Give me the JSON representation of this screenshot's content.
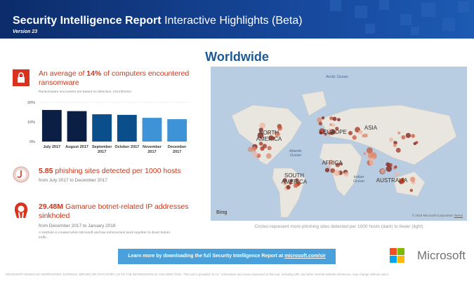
{
  "header": {
    "title_bold": "Security Intelligence Report",
    "title_rest": "Interactive Highlights (Beta)",
    "version": "Version 23"
  },
  "heading": "Worldwide",
  "ransomware": {
    "prefix": "An average of ",
    "value": "14%",
    "suffix": " of computers encountered ransomware",
    "note": "Ransomware encounters are based on detection, not infection."
  },
  "chart_data": {
    "type": "bar",
    "categories": [
      "July 2017",
      "August 2017",
      "September 2017",
      "October 2017",
      "November 2017",
      "December 2017"
    ],
    "values": [
      16.1,
      15.5,
      13.9,
      13.6,
      12.1,
      11.4
    ],
    "colors": [
      "#0b1f44",
      "#0b1f44",
      "#0a4f8c",
      "#0a4f8c",
      "#3d93d6",
      "#3d93d6"
    ],
    "ylim": [
      0,
      20
    ],
    "yticks": [
      {
        "value": 0,
        "label": "0%"
      },
      {
        "value": 10,
        "label": "10%"
      },
      {
        "value": 20,
        "label": "20%"
      }
    ],
    "grid": true
  },
  "phishing": {
    "value": "5.85",
    "text": " phishing sites detected per 1000 hosts",
    "period": "from July 2017 to December 2017"
  },
  "botnet": {
    "value": "29.48M",
    "text": " Gamarue botnet-related IP addresses sinkholed",
    "period": "from December 2017 to January 2018",
    "note": "A sinkhole is created when Microsoft and law enforcement work together to divert botnet traffic."
  },
  "map": {
    "labels": [
      "Arctic Ocean",
      "NORTH AMERICA",
      "EUROPE",
      "ASIA",
      "Atlantic Ocean",
      "AFRICA",
      "SOUTH AMERICA",
      "Indian Ocean",
      "AUSTRALIA"
    ],
    "attribution": "Bing",
    "copyright": "© 2018 Microsoft Corporation",
    "terms": "Terms",
    "caption": "Circles represent more phishing sites detected per 1000 hosts (dark) to fewer (light)"
  },
  "cta": {
    "text": "Learn more by downloading the full Security Intelligence Report at ",
    "link": "microsoft.com/sir"
  },
  "logo": "Microsoft",
  "disclaimer": "MICROSOFT MAKES NO WARRANTIES, EXPRESS, IMPLIED OR STATUTORY, AS TO THE INFORMATION IN THIS WEB TOOL. This tool is provided \"as-is.\" Information and views expressed in this tool, including URL and other Internet website references, may change without notice."
}
